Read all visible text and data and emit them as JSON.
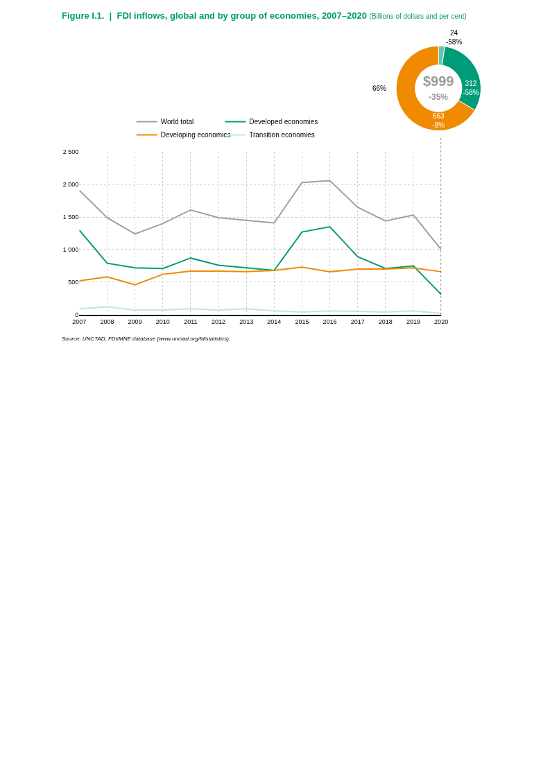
{
  "chart_data": [
    {
      "type": "line",
      "title": "Figure I.1.  |  FDI inflows, global and by group of economies, 2007–2020",
      "subtitle": "(Billions of dollars and per cent)",
      "x": [
        2007,
        2008,
        2009,
        2010,
        2011,
        2012,
        2013,
        2014,
        2015,
        2016,
        2017,
        2018,
        2019,
        2020
      ],
      "series": [
        {
          "name": "World total",
          "color": "#a0a0a0",
          "values": [
            1910,
            1490,
            1240,
            1400,
            1610,
            1490,
            1450,
            1410,
            2030,
            2060,
            1650,
            1440,
            1530,
            1000
          ]
        },
        {
          "name": "Developed economies",
          "color": "#009b77",
          "values": [
            1300,
            790,
            720,
            710,
            870,
            760,
            720,
            680,
            1270,
            1350,
            890,
            710,
            750,
            310
          ]
        },
        {
          "name": "Developing economies",
          "color": "#f08a00",
          "values": [
            520,
            580,
            460,
            620,
            670,
            670,
            660,
            680,
            730,
            660,
            700,
            700,
            720,
            660
          ]
        },
        {
          "name": "Transition economies",
          "color": "#c2e6dd",
          "values": [
            90,
            120,
            70,
            70,
            90,
            70,
            90,
            60,
            40,
            60,
            50,
            40,
            60,
            20
          ]
        }
      ],
      "xlim": [
        2007,
        2020
      ],
      "xticks": [
        2007,
        2008,
        2009,
        2010,
        2011,
        2012,
        2013,
        2014,
        2015,
        2016,
        2017,
        2018,
        2019,
        2020
      ],
      "ylim": [
        0,
        2500
      ],
      "yticks": [
        0,
        {
          "value": 500,
          "label": "500"
        },
        {
          "value": 1000,
          "label": "1 000"
        },
        {
          "value": 1500,
          "label": "1 500"
        },
        {
          "value": 2000,
          "label": "2 000"
        },
        {
          "value": 2500,
          "label": "2 500"
        }
      ],
      "grid": true,
      "legend": "top left",
      "marker": "none",
      "line_style": "solid",
      "ref_lines": [
        {
          "axis": "x",
          "value": 2020,
          "label": null,
          "color": "#000000",
          "line_style": "dotted"
        }
      ],
      "annotations": [
        "Source: UNCTAD, FDI/MNE database (www.unctad.org/fdistatistics)."
      ]
    },
    {
      "type": "donut",
      "categories": [
        null,
        null,
        null
      ],
      "values": [
        24,
        312,
        663
      ],
      "colors": [
        "#6cc4ad",
        "#009b77",
        "#f08a00"
      ],
      "value_labels": [
        "24\n-58%",
        "312\n-58%",
        "663\n-8%"
      ],
      "annotations": [
        "$999",
        "-35%",
        "66%"
      ]
    }
  ]
}
